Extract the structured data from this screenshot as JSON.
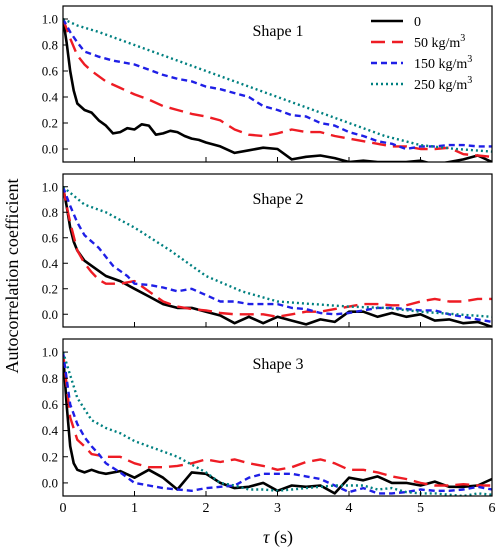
{
  "chart_data": [
    {
      "type": "line",
      "panel_label": "Shape 1",
      "xlim": [
        0,
        6
      ],
      "ylim": [
        -0.1,
        1.1
      ],
      "legend": {
        "placement": "top-right",
        "items": [
          {
            "label": "0",
            "unit": "",
            "color": "#000000",
            "dash": "solid"
          },
          {
            "label": "50 kg/m",
            "unit": "3",
            "color": "#ee1c24",
            "dash": "dash"
          },
          {
            "label": "150 kg/m",
            "unit": "3",
            "color": "#1f1fe6",
            "dash": "short-dash"
          },
          {
            "label": "250 kg/m",
            "unit": "3",
            "color": "#008080",
            "dash": "dot"
          }
        ]
      },
      "series": [
        {
          "color": "#000000",
          "dash": "solid",
          "x": [
            0,
            0.05,
            0.1,
            0.15,
            0.2,
            0.3,
            0.4,
            0.5,
            0.6,
            0.7,
            0.8,
            0.9,
            1.0,
            1.1,
            1.2,
            1.3,
            1.4,
            1.5,
            1.6,
            1.7,
            1.8,
            1.9,
            2.0,
            2.2,
            2.4,
            2.6,
            2.8,
            3.0,
            3.2,
            3.4,
            3.6,
            3.8,
            4.0,
            4.2,
            4.4,
            4.6,
            4.8,
            5.0,
            5.2,
            5.4,
            5.6,
            5.8,
            6.0
          ],
          "y": [
            1.0,
            0.82,
            0.6,
            0.45,
            0.35,
            0.3,
            0.28,
            0.22,
            0.18,
            0.12,
            0.13,
            0.16,
            0.15,
            0.19,
            0.18,
            0.11,
            0.12,
            0.14,
            0.13,
            0.1,
            0.08,
            0.07,
            0.05,
            0.02,
            -0.03,
            -0.01,
            0.01,
            0.0,
            -0.08,
            -0.06,
            -0.05,
            -0.07,
            -0.1,
            -0.09,
            -0.1,
            -0.1,
            -0.1,
            -0.09,
            -0.12,
            -0.1,
            -0.08,
            -0.05,
            -0.1
          ]
        },
        {
          "color": "#ee1c24",
          "dash": "dash",
          "x": [
            0,
            0.1,
            0.2,
            0.3,
            0.4,
            0.6,
            0.8,
            1.0,
            1.2,
            1.4,
            1.6,
            1.8,
            2.0,
            2.2,
            2.4,
            2.6,
            2.8,
            3.0,
            3.2,
            3.4,
            3.6,
            3.8,
            4.0,
            4.2,
            4.4,
            4.6,
            4.8,
            5.0,
            5.2,
            5.4,
            5.6,
            5.8,
            6.0
          ],
          "y": [
            1.0,
            0.85,
            0.72,
            0.65,
            0.6,
            0.52,
            0.47,
            0.42,
            0.38,
            0.33,
            0.3,
            0.27,
            0.25,
            0.22,
            0.15,
            0.11,
            0.1,
            0.12,
            0.15,
            0.13,
            0.13,
            0.1,
            0.08,
            0.06,
            0.04,
            0.02,
            0.02,
            0.0,
            0.0,
            0.01,
            -0.04,
            -0.05,
            -0.06
          ]
        },
        {
          "color": "#1f1fe6",
          "dash": "short-dash",
          "x": [
            0,
            0.1,
            0.2,
            0.3,
            0.5,
            0.7,
            1.0,
            1.2,
            1.4,
            1.6,
            1.8,
            2.0,
            2.2,
            2.4,
            2.6,
            2.8,
            3.0,
            3.2,
            3.4,
            3.6,
            3.8,
            4.0,
            4.2,
            4.4,
            4.6,
            4.8,
            5.0,
            5.2,
            5.4,
            5.6,
            5.8,
            6.0
          ],
          "y": [
            1.0,
            0.9,
            0.82,
            0.75,
            0.71,
            0.68,
            0.65,
            0.61,
            0.57,
            0.54,
            0.52,
            0.48,
            0.46,
            0.43,
            0.4,
            0.33,
            0.3,
            0.26,
            0.25,
            0.2,
            0.18,
            0.13,
            0.1,
            0.06,
            0.04,
            0.0,
            0.02,
            0.02,
            0.03,
            0.03,
            0.02,
            0.02
          ]
        },
        {
          "color": "#008080",
          "dash": "dot",
          "x": [
            0,
            0.2,
            0.5,
            1.0,
            1.5,
            2.0,
            2.5,
            3.0,
            3.5,
            4.0,
            4.5,
            5.0,
            5.5,
            6.0
          ],
          "y": [
            1.0,
            0.95,
            0.9,
            0.8,
            0.7,
            0.6,
            0.5,
            0.4,
            0.3,
            0.2,
            0.1,
            0.03,
            0.0,
            -0.02
          ]
        }
      ]
    },
    {
      "type": "line",
      "panel_label": "Shape 2",
      "xlim": [
        0,
        6
      ],
      "ylim": [
        -0.1,
        1.1
      ],
      "series": [
        {
          "color": "#000000",
          "dash": "solid",
          "x": [
            0,
            0.05,
            0.1,
            0.15,
            0.2,
            0.3,
            0.4,
            0.5,
            0.6,
            0.8,
            1.0,
            1.2,
            1.4,
            1.6,
            1.8,
            2.0,
            2.2,
            2.4,
            2.6,
            2.8,
            3.0,
            3.2,
            3.4,
            3.6,
            3.8,
            4.0,
            4.2,
            4.4,
            4.6,
            4.8,
            5.0,
            5.2,
            5.4,
            5.6,
            5.8,
            6.0
          ],
          "y": [
            1.0,
            0.85,
            0.68,
            0.57,
            0.5,
            0.42,
            0.38,
            0.34,
            0.3,
            0.26,
            0.2,
            0.14,
            0.08,
            0.05,
            0.05,
            0.02,
            -0.01,
            -0.07,
            -0.02,
            -0.07,
            -0.02,
            -0.05,
            -0.08,
            -0.04,
            -0.06,
            0.02,
            0.02,
            -0.02,
            0.01,
            -0.02,
            0.0,
            -0.05,
            -0.04,
            -0.07,
            -0.06,
            -0.1
          ]
        },
        {
          "color": "#ee1c24",
          "dash": "dash",
          "x": [
            0,
            0.05,
            0.1,
            0.2,
            0.3,
            0.4,
            0.5,
            0.6,
            0.8,
            1.0,
            1.2,
            1.4,
            1.6,
            1.8,
            2.0,
            2.2,
            2.4,
            2.6,
            2.8,
            3.0,
            3.2,
            3.4,
            3.6,
            3.8,
            4.0,
            4.2,
            4.4,
            4.6,
            4.8,
            5.0,
            5.2,
            5.4,
            5.6,
            5.8,
            6.0
          ],
          "y": [
            1.0,
            0.85,
            0.72,
            0.5,
            0.4,
            0.33,
            0.27,
            0.24,
            0.24,
            0.26,
            0.18,
            0.1,
            0.06,
            0.04,
            0.03,
            0.01,
            0.0,
            0.0,
            0.0,
            -0.02,
            0.0,
            0.02,
            0.02,
            0.04,
            0.06,
            0.08,
            0.08,
            0.07,
            0.07,
            0.1,
            0.12,
            0.1,
            0.1,
            0.12,
            0.12
          ]
        },
        {
          "color": "#1f1fe6",
          "dash": "short-dash",
          "x": [
            0,
            0.1,
            0.2,
            0.3,
            0.5,
            0.7,
            0.9,
            1.0,
            1.2,
            1.4,
            1.6,
            1.8,
            2.0,
            2.2,
            2.4,
            2.6,
            2.8,
            3.0,
            3.2,
            3.4,
            3.6,
            3.8,
            4.0,
            4.2,
            4.4,
            4.6,
            4.8,
            5.0,
            5.2,
            5.4,
            5.6,
            5.8,
            6.0
          ],
          "y": [
            1.0,
            0.85,
            0.72,
            0.62,
            0.52,
            0.38,
            0.3,
            0.24,
            0.23,
            0.21,
            0.18,
            0.2,
            0.15,
            0.1,
            0.1,
            0.08,
            0.08,
            0.08,
            0.05,
            0.04,
            0.01,
            0.0,
            0.01,
            0.03,
            0.05,
            0.05,
            0.04,
            0.03,
            0.03,
            0.0,
            -0.02,
            -0.04,
            -0.06
          ]
        },
        {
          "color": "#008080",
          "dash": "dot",
          "x": [
            0,
            0.3,
            0.6,
            1.0,
            1.5,
            2.0,
            2.5,
            3.0,
            3.5,
            4.0,
            4.5,
            5.0,
            5.5,
            6.0
          ],
          "y": [
            1.0,
            0.86,
            0.8,
            0.68,
            0.5,
            0.3,
            0.18,
            0.1,
            0.08,
            0.06,
            0.05,
            0.02,
            0.0,
            -0.02
          ]
        }
      ]
    },
    {
      "type": "line",
      "panel_label": "Shape 3",
      "xlim": [
        0,
        6
      ],
      "ylim": [
        -0.1,
        1.1
      ],
      "series": [
        {
          "color": "#000000",
          "dash": "solid",
          "x": [
            0,
            0.05,
            0.1,
            0.15,
            0.2,
            0.3,
            0.4,
            0.5,
            0.6,
            0.8,
            1.0,
            1.2,
            1.4,
            1.6,
            1.8,
            2.0,
            2.2,
            2.4,
            2.6,
            2.8,
            3.0,
            3.2,
            3.4,
            3.6,
            3.8,
            4.0,
            4.2,
            4.4,
            4.6,
            4.8,
            5.0,
            5.2,
            5.4,
            5.6,
            5.8,
            6.0
          ],
          "y": [
            1.0,
            0.6,
            0.28,
            0.15,
            0.1,
            0.08,
            0.1,
            0.08,
            0.07,
            0.09,
            0.04,
            0.1,
            0.04,
            -0.05,
            0.08,
            0.07,
            0.0,
            -0.04,
            -0.03,
            0.0,
            -0.06,
            -0.02,
            -0.03,
            -0.02,
            -0.08,
            0.04,
            0.02,
            0.05,
            0.0,
            0.0,
            -0.02,
            0.01,
            -0.03,
            -0.03,
            -0.02,
            0.03
          ]
        },
        {
          "color": "#ee1c24",
          "dash": "dash",
          "x": [
            0,
            0.05,
            0.1,
            0.2,
            0.3,
            0.4,
            0.6,
            0.8,
            1.0,
            1.2,
            1.4,
            1.6,
            1.8,
            2.0,
            2.2,
            2.4,
            2.6,
            2.8,
            3.0,
            3.2,
            3.4,
            3.6,
            3.8,
            4.0,
            4.2,
            4.4,
            4.6,
            4.8,
            5.0,
            5.2,
            5.4,
            5.6,
            5.8,
            6.0
          ],
          "y": [
            1.0,
            0.75,
            0.5,
            0.33,
            0.28,
            0.22,
            0.2,
            0.2,
            0.15,
            0.12,
            0.12,
            0.13,
            0.15,
            0.18,
            0.16,
            0.18,
            0.15,
            0.13,
            0.1,
            0.12,
            0.16,
            0.18,
            0.15,
            0.1,
            0.1,
            0.08,
            0.05,
            0.03,
            0.0,
            -0.02,
            -0.02,
            -0.01,
            -0.02,
            -0.02
          ]
        },
        {
          "color": "#1f1fe6",
          "dash": "short-dash",
          "x": [
            0,
            0.05,
            0.1,
            0.2,
            0.3,
            0.4,
            0.5,
            0.6,
            0.8,
            1.0,
            1.2,
            1.4,
            1.6,
            1.8,
            2.0,
            2.2,
            2.4,
            2.6,
            2.8,
            3.0,
            3.2,
            3.4,
            3.6,
            3.8,
            4.0,
            4.2,
            4.4,
            4.6,
            4.8,
            5.0,
            5.2,
            5.4,
            5.6,
            5.8,
            6.0
          ],
          "y": [
            1.0,
            0.8,
            0.6,
            0.45,
            0.35,
            0.28,
            0.22,
            0.15,
            0.08,
            0.0,
            -0.02,
            -0.04,
            -0.05,
            -0.06,
            -0.04,
            -0.03,
            -0.02,
            0.04,
            0.07,
            0.07,
            0.07,
            0.05,
            0.03,
            -0.02,
            -0.07,
            -0.04,
            -0.08,
            -0.08,
            -0.07,
            -0.05,
            -0.06,
            -0.06,
            -0.05,
            -0.03,
            -0.05
          ]
        },
        {
          "color": "#008080",
          "dash": "dot",
          "x": [
            0,
            0.2,
            0.4,
            0.6,
            0.8,
            1.0,
            1.2,
            1.4,
            1.6,
            1.8,
            2.0,
            2.2,
            2.4,
            2.6,
            2.8,
            3.0,
            3.2,
            3.4,
            3.6,
            3.8,
            4.0,
            4.2,
            4.4,
            4.6,
            4.8,
            5.0,
            5.2,
            5.4,
            5.6,
            5.8,
            6.0
          ],
          "y": [
            1.0,
            0.65,
            0.48,
            0.42,
            0.38,
            0.32,
            0.28,
            0.24,
            0.2,
            0.14,
            0.08,
            0.0,
            -0.02,
            -0.05,
            -0.05,
            -0.06,
            -0.05,
            -0.04,
            -0.03,
            -0.02,
            -0.02,
            -0.02,
            -0.05,
            -0.04,
            -0.07,
            -0.08,
            -0.08,
            -0.09,
            -0.1,
            -0.08,
            -0.09
          ]
        }
      ]
    }
  ],
  "axes": {
    "xlabel_symbol": "τ",
    "xlabel_unit": " (s)",
    "ylabel": "Autocorrelation coefficient",
    "x_ticks": [
      0,
      1,
      2,
      3,
      4,
      5,
      6
    ],
    "y_ticks": [
      0.0,
      0.2,
      0.4,
      0.6,
      0.8,
      1.0
    ],
    "y_tick_labels": [
      "0.0",
      "0.2",
      "0.4",
      "0.6",
      "0.8",
      "1.0"
    ],
    "x_tick_labels": [
      "0",
      "1",
      "2",
      "3",
      "4",
      "5",
      "6"
    ]
  }
}
